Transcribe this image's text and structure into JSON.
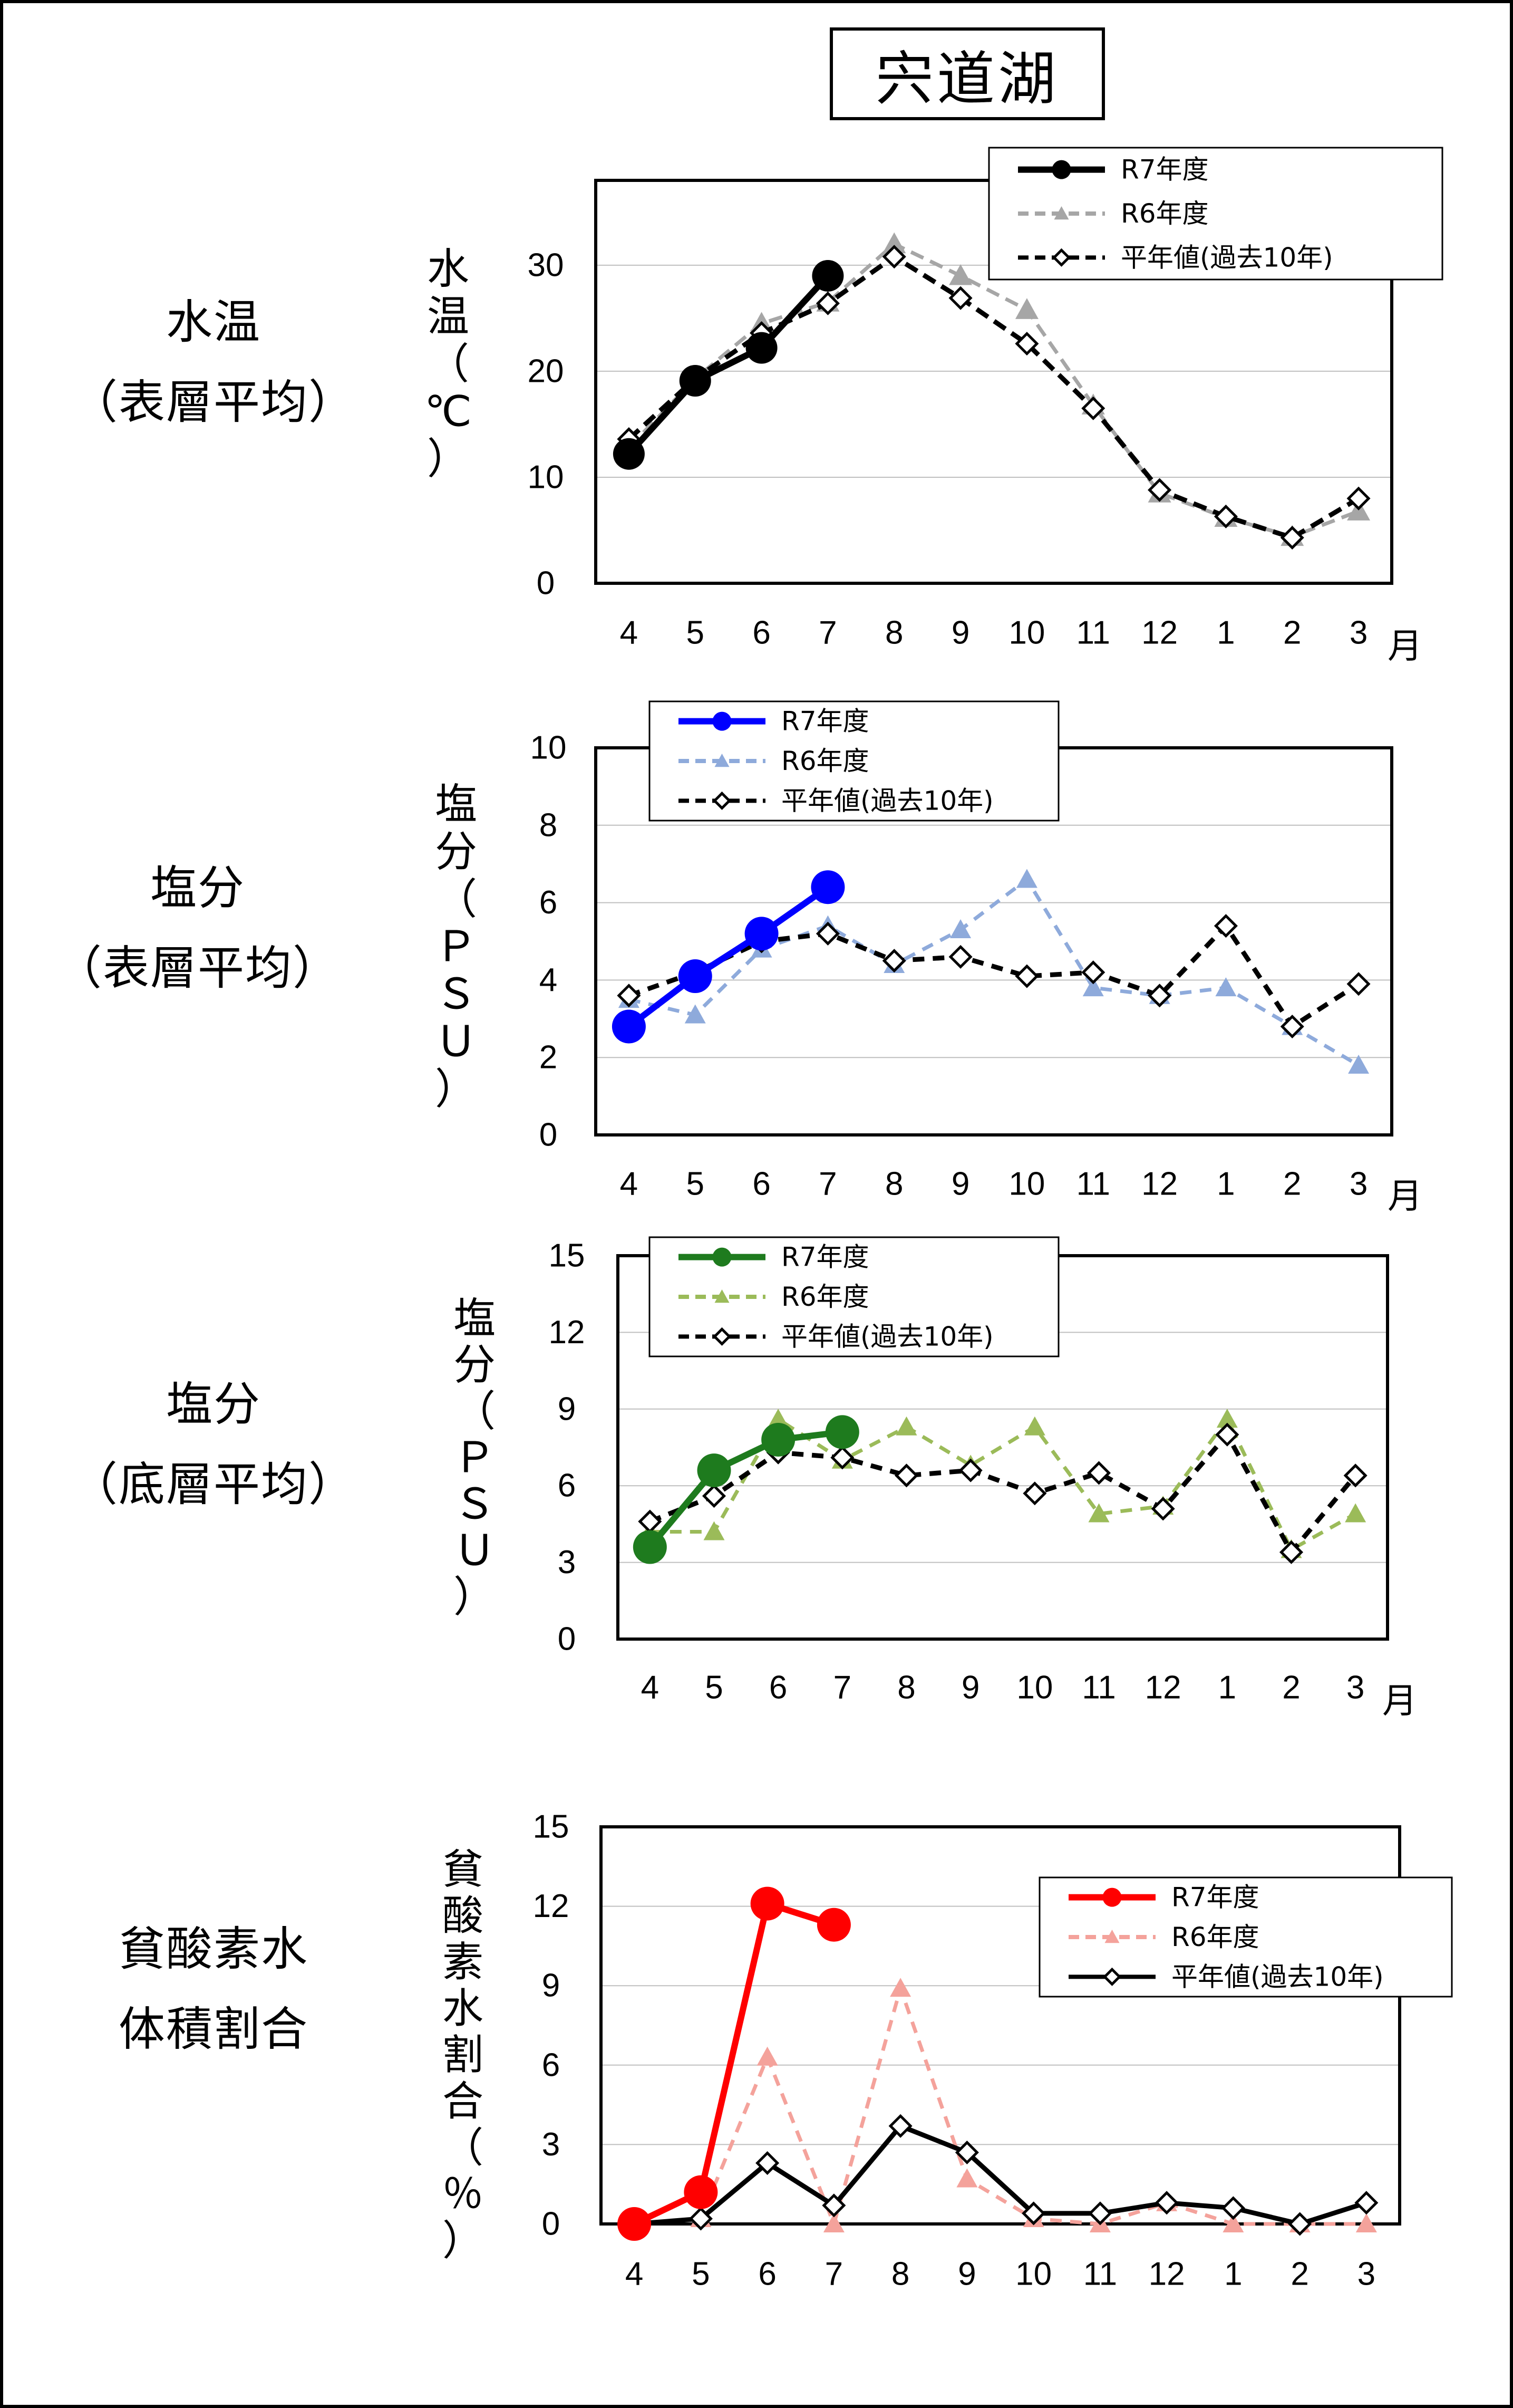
{
  "title": "宍道湖",
  "sections": [
    {
      "line1": "水温",
      "line2": "（表層平均）"
    },
    {
      "line1": "塩分",
      "line2": "（表層平均）"
    },
    {
      "line1": "塩分",
      "line2": "（底層平均）"
    },
    {
      "line1": "貧酸素水",
      "line2": "体積割合"
    }
  ],
  "chart_data": [
    {
      "type": "line",
      "categories": [
        "4",
        "5",
        "6",
        "7",
        "8",
        "9",
        "10",
        "11",
        "12",
        "1",
        "2",
        "3"
      ],
      "x_unit": "月",
      "ylabel": "水温（℃）",
      "ylim": [
        0,
        38
      ],
      "yticks": [
        0,
        10,
        20,
        30
      ],
      "grid": true,
      "legend_position": "top-right",
      "series": [
        {
          "name": "R7年度",
          "color": "#000000",
          "marker": "circle",
          "line": "solid",
          "values": [
            12.2,
            19.1,
            22.2,
            29.0,
            null,
            null,
            null,
            null,
            null,
            null,
            null,
            null
          ]
        },
        {
          "name": "R6年度",
          "color": "#a6a6a6",
          "marker": "triangle",
          "line": "dashed",
          "values": [
            12.8,
            19.3,
            24.5,
            26.5,
            32.0,
            29.0,
            25.8,
            16.8,
            8.5,
            6.2,
            4.4,
            6.8
          ]
        },
        {
          "name": "平年値(過去10年)",
          "color": "#000000",
          "marker": "diamond",
          "line": "dashed",
          "values": [
            13.6,
            19.3,
            23.6,
            26.4,
            30.8,
            26.9,
            22.6,
            16.5,
            8.8,
            6.3,
            4.3,
            8.0
          ]
        }
      ]
    },
    {
      "type": "line",
      "categories": [
        "4",
        "5",
        "6",
        "7",
        "8",
        "9",
        "10",
        "11",
        "12",
        "1",
        "2",
        "3"
      ],
      "x_unit": "月",
      "ylabel": "塩分（ＰＳＵ）",
      "ylim": [
        0,
        10
      ],
      "yticks": [
        0,
        2,
        4,
        6,
        8,
        10
      ],
      "grid": true,
      "legend_position": "top-center",
      "series": [
        {
          "name": "R7年度",
          "color": "#0000ff",
          "marker": "circle",
          "line": "solid",
          "values": [
            2.8,
            4.1,
            5.2,
            6.4,
            null,
            null,
            null,
            null,
            null,
            null,
            null,
            null
          ]
        },
        {
          "name": "R6年度",
          "color": "#8eaadb",
          "marker": "triangle",
          "line": "dashed",
          "values": [
            3.5,
            3.1,
            4.8,
            5.4,
            4.4,
            5.3,
            6.6,
            3.8,
            3.6,
            3.8,
            2.8,
            1.8
          ]
        },
        {
          "name": "平年値(過去10年)",
          "color": "#000000",
          "marker": "diamond",
          "line": "dashed",
          "values": [
            3.6,
            4.2,
            5.0,
            5.2,
            4.5,
            4.6,
            4.1,
            4.2,
            3.6,
            5.4,
            2.8,
            3.9
          ]
        }
      ]
    },
    {
      "type": "line",
      "categories": [
        "4",
        "5",
        "6",
        "7",
        "8",
        "9",
        "10",
        "11",
        "12",
        "1",
        "2",
        "3"
      ],
      "x_unit": "月",
      "ylabel": "塩分（ＰＳＵ）",
      "ylim": [
        0,
        15
      ],
      "yticks": [
        0,
        3,
        6,
        9,
        12,
        15
      ],
      "grid": true,
      "legend_position": "top-center",
      "series": [
        {
          "name": "R7年度",
          "color": "#1e7b1e",
          "marker": "circle",
          "line": "solid",
          "values": [
            3.6,
            6.6,
            7.8,
            8.1,
            null,
            null,
            null,
            null,
            null,
            null,
            null,
            null
          ]
        },
        {
          "name": "R6年度",
          "color": "#9bbb59",
          "marker": "triangle",
          "line": "dashed",
          "values": [
            4.2,
            4.2,
            8.6,
            7.0,
            8.3,
            6.8,
            8.3,
            4.9,
            5.2,
            8.6,
            3.5,
            4.9
          ]
        },
        {
          "name": "平年値(過去10年)",
          "color": "#000000",
          "marker": "diamond",
          "line": "dashed",
          "values": [
            4.6,
            5.6,
            7.3,
            7.1,
            6.4,
            6.6,
            5.7,
            6.5,
            5.1,
            8.0,
            3.4,
            6.4
          ]
        }
      ]
    },
    {
      "type": "line",
      "categories": [
        "4",
        "5",
        "6",
        "7",
        "8",
        "9",
        "10",
        "11",
        "12",
        "1",
        "2",
        "3"
      ],
      "ylabel": "貧酸素水割合（％）",
      "ylim": [
        0,
        15
      ],
      "yticks": [
        0,
        3,
        6,
        9,
        12,
        15
      ],
      "grid": true,
      "legend_position": "top-right",
      "series": [
        {
          "name": "R7年度",
          "color": "#ff0000",
          "marker": "circle",
          "line": "solid",
          "values": [
            0.0,
            1.2,
            12.1,
            11.3,
            null,
            null,
            null,
            null,
            null,
            null,
            null,
            null
          ]
        },
        {
          "name": "R6年度",
          "color": "#f4a29b",
          "marker": "triangle",
          "line": "dashed",
          "values": [
            0.0,
            0.2,
            6.3,
            0.0,
            8.9,
            1.7,
            0.2,
            0.0,
            0.8,
            0.0,
            0.0,
            0.0
          ]
        },
        {
          "name": "平年値(過去10年)",
          "color": "#000000",
          "marker": "diamond",
          "line": "solid",
          "values": [
            0.0,
            0.2,
            2.3,
            0.7,
            3.7,
            2.7,
            0.4,
            0.4,
            0.8,
            0.6,
            0.0,
            0.8
          ]
        }
      ]
    }
  ]
}
